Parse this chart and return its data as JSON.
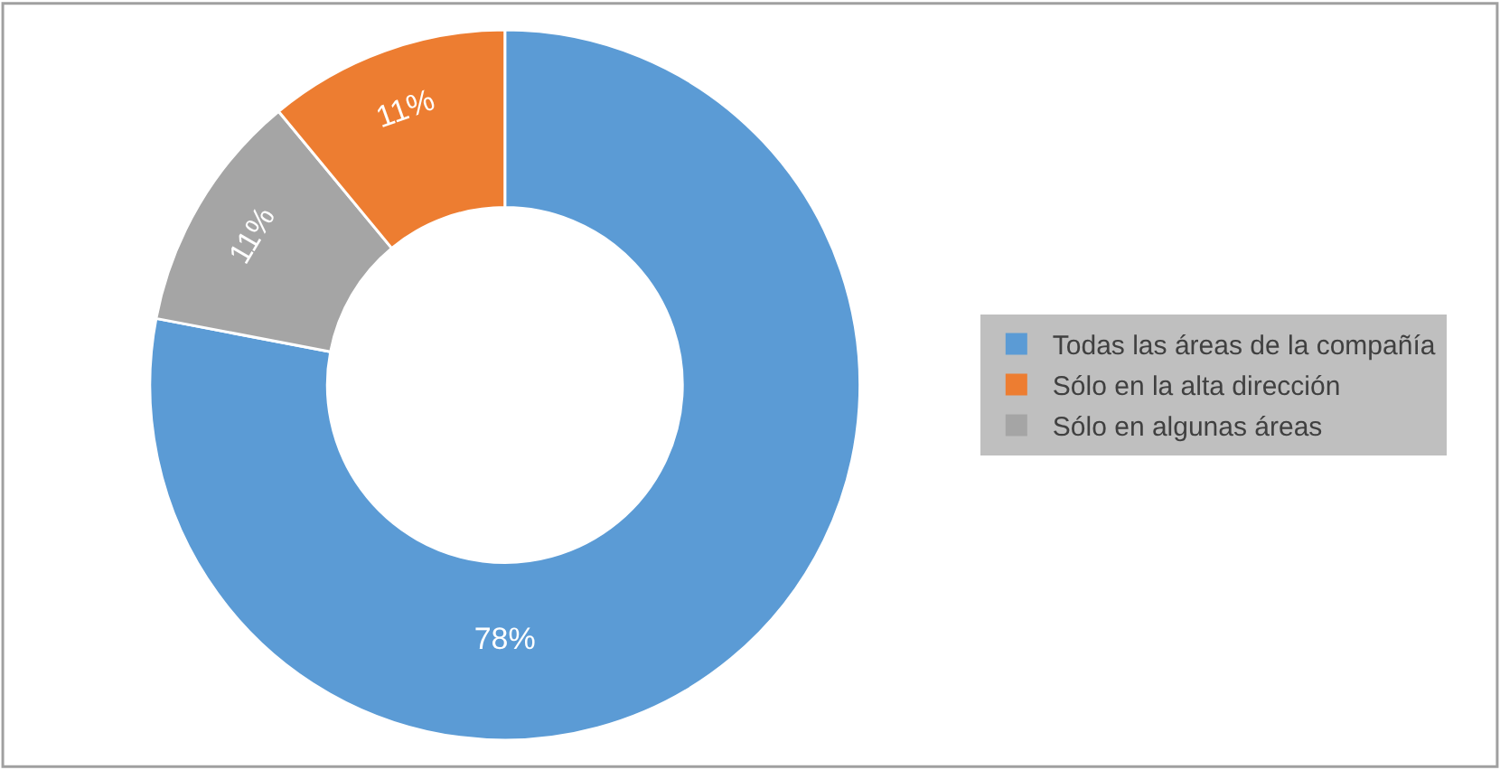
{
  "chart_data": {
    "type": "donut",
    "categories": [
      "Todas las áreas de la compañía",
      "Sólo en la alta dirección",
      "Sólo en algunas áreas"
    ],
    "values": [
      78,
      11,
      11
    ],
    "colors": [
      "#5b9bd5",
      "#ed7d31",
      "#a5a5a5"
    ],
    "value_labels": [
      "78%",
      "11%",
      "11%"
    ],
    "legend": "right"
  }
}
